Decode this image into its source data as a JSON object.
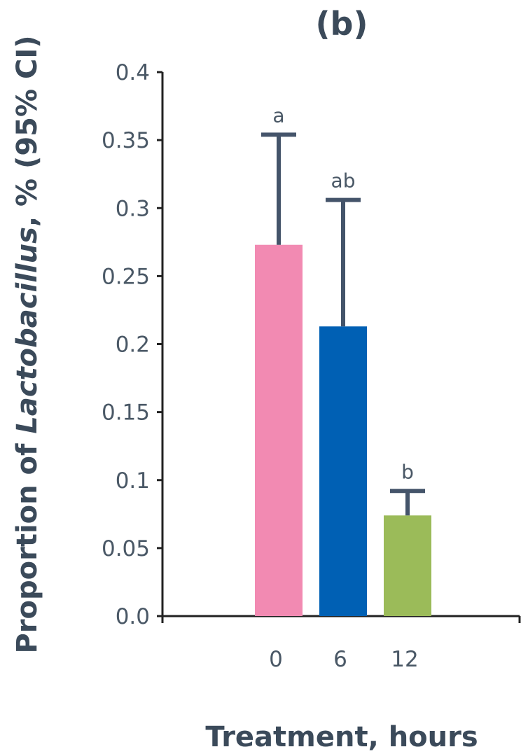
{
  "panel_label": "(b)",
  "chart_data": {
    "type": "bar",
    "categories": [
      "0",
      "6",
      "12"
    ],
    "values": [
      0.273,
      0.213,
      0.074
    ],
    "error_upper": [
      0.354,
      0.306,
      0.092
    ],
    "significance_labels": [
      "a",
      "ab",
      "b"
    ],
    "bar_colors": [
      "#f28ab2",
      "#0060b4",
      "#9bbb59"
    ],
    "ylim": [
      0,
      0.4
    ],
    "yticks": [
      "0.0",
      "0.05",
      "0.1",
      "0.15",
      "0.2",
      "0.25",
      "0.3",
      "0.35",
      "0.4"
    ],
    "ylabel": {
      "prefix": "Proportion of ",
      "italic": "Lactobacillus",
      "suffix": ", % (95% CI)"
    },
    "xlabel": "Treatment, hours",
    "grid": false
  }
}
